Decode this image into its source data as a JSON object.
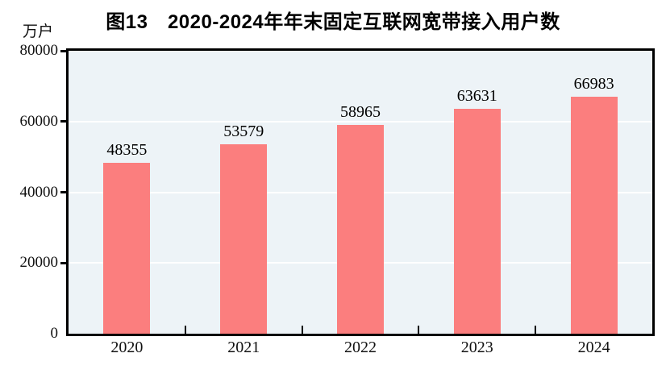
{
  "header": {
    "title": "图13　2020-2024年年末固定互联网宽带接入用户数",
    "unit_label": "万户"
  },
  "chart_data": {
    "type": "bar",
    "title": "图13　2020-2024年年末固定互联网宽带接入用户数",
    "ylabel_unit": "万户",
    "categories": [
      "2020",
      "2021",
      "2022",
      "2023",
      "2024"
    ],
    "values": [
      48355,
      53579,
      58965,
      63631,
      66983
    ],
    "data_labels": [
      48355,
      53579,
      58965,
      63631,
      66983
    ],
    "ylim": [
      0,
      80000
    ],
    "yticks": [
      0,
      20000,
      40000,
      60000,
      80000
    ],
    "grid": true,
    "legend_position": "none",
    "colors": {
      "bar": "#fb7e7e",
      "plot_background": "#edf3f7",
      "gridline": "#ffffff",
      "axis": "#000000",
      "text": "#000000"
    }
  }
}
